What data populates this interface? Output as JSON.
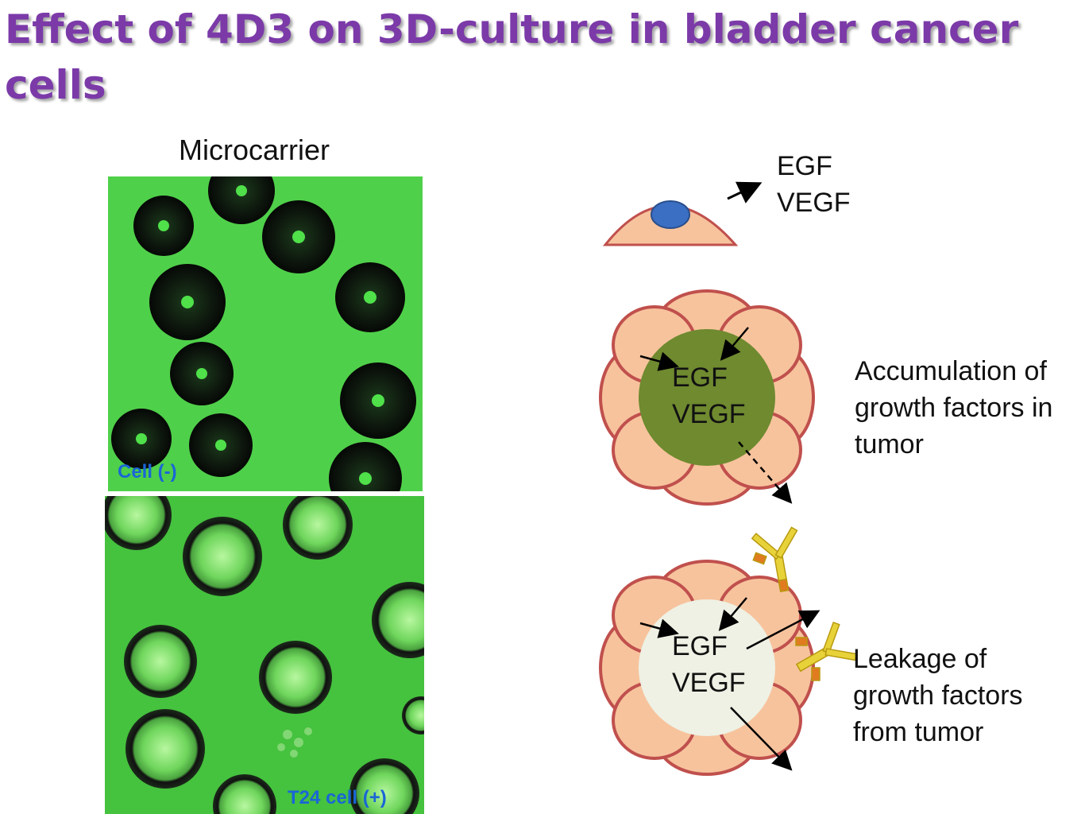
{
  "slide": {
    "title": "Effect of 4D3 on 3D-culture in bladder cancer cells"
  },
  "microscopy": {
    "column_label": "Microcarrier",
    "top_panel_tag": "Cell (-)",
    "bottom_panel_tag": "T24 cell (+)"
  },
  "diagram": {
    "single_cell": {
      "factor_1": "EGF",
      "factor_2": "VEGF"
    },
    "accumulation": {
      "factor_1": "EGF",
      "factor_2": "VEGF",
      "caption_line1": "Accumulation of",
      "caption_line2": "growth factors in",
      "caption_line3": "tumor"
    },
    "leakage": {
      "factor_1": "EGF",
      "factor_2": "VEGF",
      "caption_line1": "Leakage of",
      "caption_line2": "growth factors",
      "caption_line3": "from tumor"
    }
  },
  "colors": {
    "title": "#7b3aa8",
    "cell_fill": "#f7c39d",
    "cell_stroke": "#c0504d",
    "nucleus": "#3b6fc4",
    "accumulated_core": "#6f8a2f",
    "leaked_core": "#eef1e4",
    "antibody": "#e8d23a"
  }
}
